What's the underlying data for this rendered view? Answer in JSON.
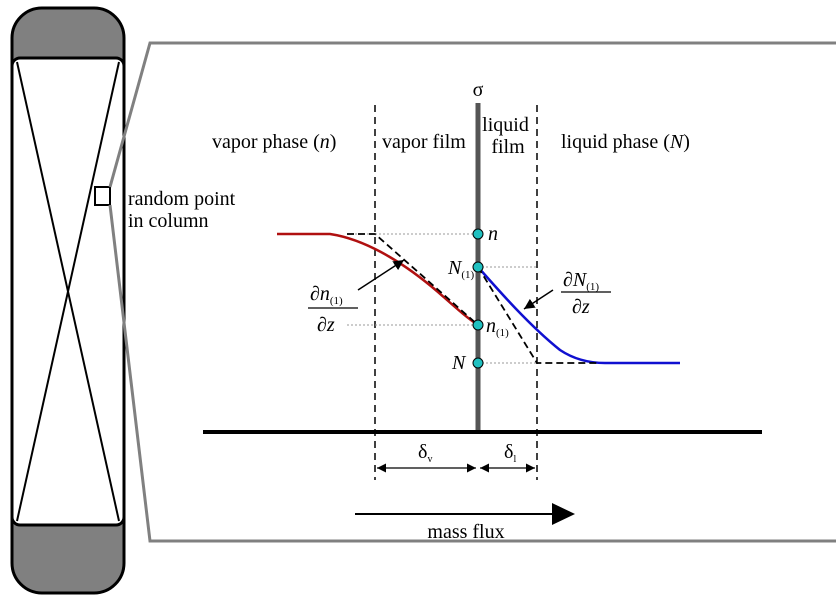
{
  "labels": {
    "sigma": "σ",
    "vapor_phase_prefix": "vapor phase (",
    "vapor_phase_var": "n",
    "vapor_phase_suffix": ")",
    "vapor_film": "vapor film",
    "liquid_film_line1": "liquid",
    "liquid_film_line2": "film",
    "liquid_phase_prefix": "liquid phase (",
    "liquid_phase_var": "N",
    "liquid_phase_suffix": ")",
    "random_point_line1": "random point",
    "random_point_line2": "in column",
    "point_n": "n",
    "point_N1_base": "N",
    "point_N1_sub": "(1)",
    "point_n1_base": "n",
    "point_n1_sub": "(1)",
    "point_N": "N",
    "grad_vapor_num_d": "∂n",
    "grad_vapor_num_sub": "(1)",
    "grad_vapor_den": "∂z",
    "grad_liquid_num_d": "∂N",
    "grad_liquid_num_sub": "(1)",
    "grad_liquid_den": "∂z",
    "delta_v_base": "δ",
    "delta_v_sub": "v",
    "delta_l_base": "δ",
    "delta_l_sub": "l",
    "mass_flux": "mass flux"
  },
  "colors": {
    "vapor_profile": "#b01010",
    "liquid_profile": "#1010d0",
    "interface_points": "#20c0c0",
    "column_caps": "#808080",
    "interface_line": "#555555",
    "callout_frame": "#808080"
  }
}
